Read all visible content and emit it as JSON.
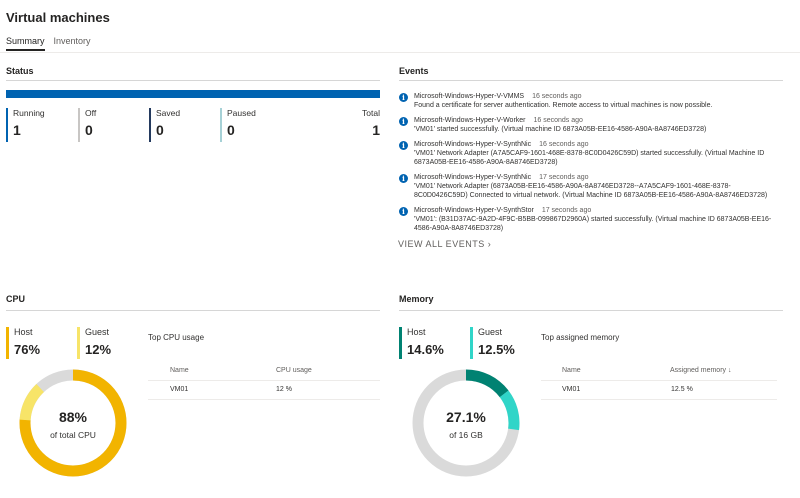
{
  "page": {
    "title": "Virtual machines"
  },
  "tabs": [
    {
      "label": "Summary",
      "active": true
    },
    {
      "label": "Inventory",
      "active": false
    }
  ],
  "status": {
    "title": "Status",
    "bar_color": "#0063b1",
    "items": [
      {
        "label": "Running",
        "value": "1",
        "color": "#0063b1"
      },
      {
        "label": "Off",
        "value": "0",
        "color": "#c8c6c4"
      },
      {
        "label": "Saved",
        "value": "0",
        "color": "#243a5e"
      },
      {
        "label": "Paused",
        "value": "0",
        "color": "#a6d1d6"
      }
    ],
    "total": {
      "label": "Total",
      "value": "1"
    }
  },
  "events": {
    "title": "Events",
    "items": [
      {
        "source": "Microsoft-Windows-Hyper-V-VMMS",
        "time": "16 seconds ago",
        "message": "Found a certificate for server authentication. Remote access to virtual machines is now possible."
      },
      {
        "source": "Microsoft-Windows-Hyper-V-Worker",
        "time": "16 seconds ago",
        "message": "'VM01' started successfully. (Virtual machine ID 6873A05B-EE16-4586-A90A-8A8746ED3728)"
      },
      {
        "source": "Microsoft-Windows-Hyper-V-SynthNic",
        "time": "16 seconds ago",
        "message": "'VM01' Network Adapter (A7A5CAF9-1601-468E-8378-8C0D0426C59D) started successfully. (Virtual Machine ID 6873A05B-EE16-4586-A90A-8A8746ED3728)"
      },
      {
        "source": "Microsoft-Windows-Hyper-V-SynthNic",
        "time": "17 seconds ago",
        "message": "'VM01' Network Adapter (6873A05B-EE16-4586-A90A-8A8746ED3728--A7A5CAF9-1601-468E-8378-8C0D0426C59D) Connected to virtual network. (Virtual Machine ID 6873A05B-EE16-4586-A90A-8A8746ED3728)"
      },
      {
        "source": "Microsoft-Windows-Hyper-V-SynthStor",
        "time": "17 seconds ago",
        "message": "'VM01': (B31D37AC-9A2D-4F9C-B5BB-099867D2960A) started successfully. (Virtual machine ID 6873A05B-EE16-4586-A90A-8A8746ED3728)"
      }
    ],
    "icon": "info-icon",
    "view_all": "VIEW ALL EVENTS"
  },
  "cpu": {
    "title": "CPU",
    "host": {
      "label": "Host",
      "value": "76%",
      "color": "#f2b400"
    },
    "guest": {
      "label": "Guest",
      "value": "12%",
      "color": "#f7e468"
    },
    "donut": {
      "value": "88%",
      "sub": "of total CPU",
      "host_fraction": 0.76,
      "guest_fraction": 0.12,
      "track_color": "#dadada"
    },
    "top_title": "Top CPU usage",
    "table": {
      "headers": [
        "Name",
        "CPU usage"
      ],
      "rows": [
        [
          "VM01",
          "12 %"
        ]
      ]
    }
  },
  "memory": {
    "title": "Memory",
    "host": {
      "label": "Host",
      "value": "14.6%",
      "color": "#008272"
    },
    "guest": {
      "label": "Guest",
      "value": "12.5%",
      "color": "#30d5c8"
    },
    "donut": {
      "value": "27.1%",
      "sub": "of 16 GB",
      "host_fraction": 0.146,
      "guest_fraction": 0.125,
      "track_color": "#dadada"
    },
    "top_title": "Top assigned memory",
    "table": {
      "headers": [
        "Name",
        "Assigned memory ↓"
      ],
      "rows": [
        [
          "VM01",
          "12.5 %"
        ]
      ]
    }
  }
}
